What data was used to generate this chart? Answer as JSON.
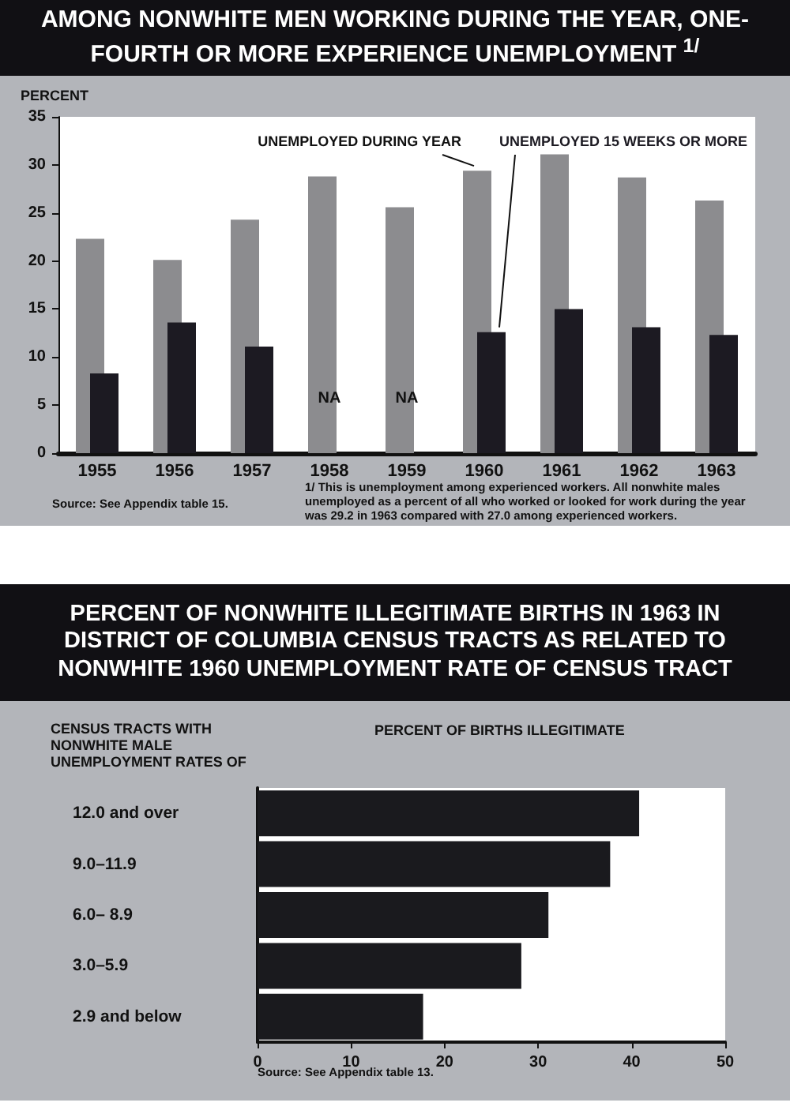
{
  "chart_data": [
    {
      "type": "bar",
      "title": "AMONG NONWHITE MEN WORKING DURING THE YEAR, ONE-FOURTH OR MORE EXPERIENCE UNEMPLOYMENT $^{1/}$",
      "ylabel": "PERCENT",
      "categories": [
        "1955",
        "1956",
        "1957",
        "1958",
        "1959",
        "1960",
        "1961",
        "1962",
        "1963"
      ],
      "series": [
        {
          "name": "UNEMPLOYED DURING YEAR",
          "color": "#8c8c8f",
          "values": [
            22.3,
            20.1,
            24.3,
            28.8,
            25.6,
            29.4,
            31.1,
            28.7,
            26.3
          ]
        },
        {
          "name": "UNEMPLOYED 15 WEEKS OR MORE",
          "color": "#1c1a22",
          "values": [
            8.3,
            13.6,
            11.1,
            null,
            null,
            12.6,
            15.0,
            13.1,
            12.3
          ]
        }
      ],
      "ylim": [
        0,
        35
      ],
      "yticks": [
        0,
        5,
        10,
        15,
        20,
        25,
        30,
        35
      ],
      "annotations": [
        {
          "text": "NA",
          "x": "1958",
          "y": 5.7
        },
        {
          "text": "NA",
          "x": "1959",
          "y": 5.7
        },
        "1/ This is unemployment among experienced workers. All nonwhite males unemployed as a percent of all who worked or looked for work during the year was 29.2 in 1963 compared with 27.0 among experienced workers.",
        "Source: See Appendix table 15."
      ]
    },
    {
      "type": "bar",
      "orientation": "horizontal",
      "title": "PERCENT OF NONWHITE ILLEGITIMATE BIRTHS IN 1963 IN DISTRICT OF COLUMBIA CENSUS TRACTS AS RELATED TO NONWHITE 1960 UNEMPLOYMENT RATE OF CENSUS TRACT",
      "xlabel": "PERCENT OF BIRTHS ILLEGITIMATE",
      "ylabel": "CENSUS TRACTS WITH NONWHITE MALE UNEMPLOYMENT RATES OF",
      "categories": [
        "12.0 and over",
        "9.0–11.9",
        "6.0– 8.9",
        "3.0–5.9",
        "2.9 and below"
      ],
      "values": [
        40.8,
        37.7,
        31.1,
        28.2,
        17.7
      ],
      "color": "#1a1a1e",
      "xlim": [
        0,
        50
      ],
      "xticks": [
        0,
        10,
        20,
        30,
        40,
        50
      ],
      "annotations": [
        "Source: See Appendix table 13."
      ]
    }
  ]
}
